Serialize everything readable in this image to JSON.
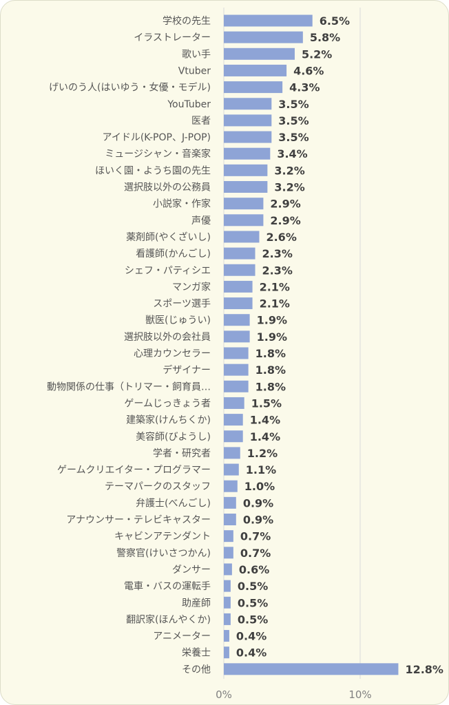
{
  "chart_data": {
    "type": "bar",
    "orientation": "horizontal",
    "categories": [
      "学校の先生",
      "イラストレーター",
      "歌い手",
      "Vtuber",
      "げいのう人(はいゆう・女優・モデル)",
      "YouTuber",
      "医者",
      "アイドル(K-POP、J-POP)",
      "ミュージシャン・音楽家",
      "ほいく園・ようち園の先生",
      "選択肢以外の公務員",
      "小説家・作家",
      "声優",
      "薬剤師(やくざいし)",
      "看護師(かんごし)",
      "シェフ・パティシエ",
      "マンガ家",
      "スポーツ選手",
      "獣医(じゅうい)",
      "選択肢以外の会社員",
      "心理カウンセラー",
      "デザイナー",
      "動物関係の仕事（トリマー・飼育員…",
      "ゲームじっきょう者",
      "建築家(けんちくか)",
      "美容師(びようし)",
      "学者・研究者",
      "ゲームクリエイター・プログラマー",
      "テーマパークのスタッフ",
      "弁護士(べんごし)",
      "アナウンサー・テレビキャスター",
      "キャビンアテンダント",
      "警察官(けいさつかん)",
      "ダンサー",
      "電車・バスの運転手",
      "助産師",
      "翻訳家(ほんやくか)",
      "アニメーター",
      "栄養士",
      "その他"
    ],
    "values": [
      6.5,
      5.8,
      5.2,
      4.6,
      4.3,
      3.5,
      3.5,
      3.5,
      3.4,
      3.2,
      3.2,
      2.9,
      2.9,
      2.6,
      2.3,
      2.3,
      2.1,
      2.1,
      1.9,
      1.9,
      1.8,
      1.8,
      1.8,
      1.5,
      1.4,
      1.4,
      1.2,
      1.1,
      1.0,
      0.9,
      0.9,
      0.7,
      0.7,
      0.6,
      0.5,
      0.5,
      0.5,
      0.4,
      0.4,
      12.8
    ],
    "value_labels": [
      "6.5%",
      "5.8%",
      "5.2%",
      "4.6%",
      "4.3%",
      "3.5%",
      "3.5%",
      "3.5%",
      "3.4%",
      "3.2%",
      "3.2%",
      "2.9%",
      "2.9%",
      "2.6%",
      "2.3%",
      "2.3%",
      "2.1%",
      "2.1%",
      "1.9%",
      "1.9%",
      "1.8%",
      "1.8%",
      "1.8%",
      "1.5%",
      "1.4%",
      "1.4%",
      "1.2%",
      "1.1%",
      "1.0%",
      "0.9%",
      "0.9%",
      "0.7%",
      "0.7%",
      "0.6%",
      "0.5%",
      "0.5%",
      "0.5%",
      "0.4%",
      "0.4%",
      "12.8%"
    ],
    "x_ticks": [
      0,
      10
    ],
    "x_tick_labels": [
      "0%",
      "10%"
    ],
    "xlim": [
      0,
      13
    ],
    "grid": true,
    "title": "",
    "xlabel": "",
    "ylabel": ""
  },
  "colors": {
    "bar": "#8ea4d6",
    "background": "#fbfaea",
    "gridline": "#d9d9d9"
  }
}
